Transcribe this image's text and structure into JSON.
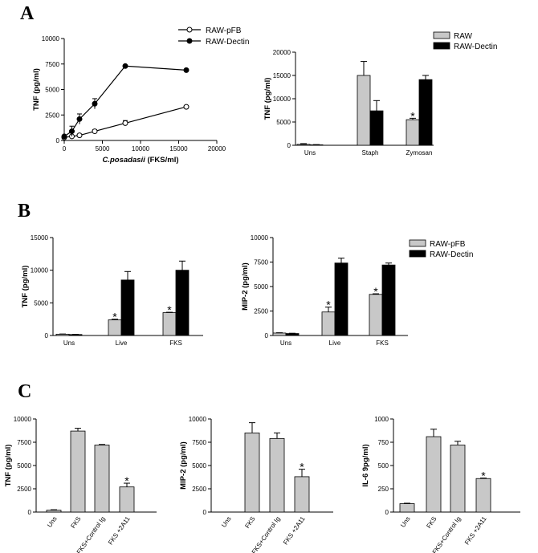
{
  "panels": {
    "a": "A",
    "b": "B",
    "c": "C"
  },
  "colors": {
    "series_open": "#c8c8c8",
    "series_filled": "#000000",
    "axis": "#000000"
  },
  "chart_data": [
    {
      "id": "A1",
      "type": "line",
      "xlabel_italic": "C.posadasii",
      "xlabel_rest": " (FKS/ml)",
      "ylabel": "TNF (pg/ml)",
      "xlim": [
        0,
        20000
      ],
      "ylim": [
        0,
        10000
      ],
      "xticks": [
        0,
        5000,
        10000,
        15000,
        20000
      ],
      "yticks": [
        0,
        2500,
        5000,
        7500,
        10000
      ],
      "legend_placement": "top-right",
      "series": [
        {
          "name": "RAW-pFB",
          "marker": "open",
          "x": [
            0,
            1000,
            2000,
            4000,
            8000,
            16000
          ],
          "y": [
            300,
            400,
            500,
            900,
            1700,
            3300
          ],
          "err": [
            100,
            100,
            100,
            150,
            250,
            100
          ]
        },
        {
          "name": "RAW-Dectin",
          "marker": "filled",
          "x": [
            0,
            1000,
            2000,
            4000,
            8000,
            16000
          ],
          "y": [
            400,
            900,
            2100,
            3600,
            7300,
            6900
          ],
          "err": [
            100,
            500,
            500,
            500,
            100,
            100
          ]
        }
      ]
    },
    {
      "id": "A2",
      "type": "bar",
      "ylabel": "TNF (pg/ml)",
      "ylim": [
        0,
        20000
      ],
      "yticks": [
        0,
        5000,
        10000,
        15000,
        20000
      ],
      "categories": [
        "Uns",
        "Staph",
        "Zymosan"
      ],
      "legend_placement": "top-right",
      "series": [
        {
          "name": "RAW",
          "fill": "#c8c8c8",
          "values": [
            200,
            15000,
            5500
          ],
          "err": [
            150,
            3000,
            300
          ]
        },
        {
          "name": "RAW-Dectin",
          "fill": "#000000",
          "values": [
            100,
            7400,
            14100
          ],
          "err": [
            50,
            2200,
            900
          ]
        }
      ],
      "stars": [
        [
          2,
          0
        ]
      ],
      "star_label": "*"
    },
    {
      "id": "B1",
      "type": "bar",
      "ylabel": "TNF (pg/ml)",
      "ylim": [
        0,
        15000
      ],
      "yticks": [
        0,
        5000,
        10000,
        15000
      ],
      "categories": [
        "Uns",
        "Live",
        "FKS"
      ],
      "series": [
        {
          "name": "RAW-pFB",
          "fill": "#c8c8c8",
          "values": [
            200,
            2400,
            3500
          ],
          "err": [
            30,
            100,
            60
          ]
        },
        {
          "name": "RAW-Dectin",
          "fill": "#000000",
          "values": [
            150,
            8500,
            10000
          ],
          "err": [
            30,
            1300,
            1400
          ]
        }
      ],
      "stars": [
        [
          1,
          0
        ],
        [
          2,
          0
        ]
      ],
      "star_label": "*"
    },
    {
      "id": "B2",
      "type": "bar",
      "ylabel": "MIP-2 (pg/ml)",
      "ylim": [
        0,
        10000
      ],
      "yticks": [
        0,
        2500,
        5000,
        7500,
        10000
      ],
      "categories": [
        "Uns",
        "Live",
        "FKS"
      ],
      "legend_placement": "right",
      "series": [
        {
          "name": "RAW-pFB",
          "fill": "#c8c8c8",
          "values": [
            250,
            2400,
            4200
          ],
          "err": [
            30,
            500,
            60
          ]
        },
        {
          "name": "RAW-Dectin",
          "fill": "#000000",
          "values": [
            200,
            7400,
            7200
          ],
          "err": [
            30,
            500,
            200
          ]
        }
      ],
      "stars": [
        [
          1,
          0
        ],
        [
          2,
          0
        ]
      ],
      "star_label": "*"
    },
    {
      "id": "C1",
      "type": "bar",
      "ylabel": "TNF (pg/ml)",
      "ylim": [
        0,
        10000
      ],
      "yticks": [
        0,
        2500,
        5000,
        7500,
        10000
      ],
      "categories": [
        "Uns",
        "FKS",
        "FKS+Control Ig",
        "FKS +2A11"
      ],
      "series": [
        {
          "name": "",
          "fill": "#c8c8c8",
          "values": [
            200,
            8700,
            7200,
            2700
          ],
          "err": [
            50,
            300,
            60,
            400
          ]
        }
      ],
      "stars": [
        [
          3,
          0
        ]
      ],
      "star_label": "*"
    },
    {
      "id": "C2",
      "type": "bar",
      "ylabel": "MIP-2 (pg/ml)",
      "ylim": [
        0,
        10000
      ],
      "yticks": [
        0,
        2500,
        5000,
        7500,
        10000
      ],
      "categories": [
        "Uns",
        "FKS",
        "FKS+Control Ig",
        "FKS +2A11"
      ],
      "series": [
        {
          "name": "",
          "fill": "#c8c8c8",
          "values": [
            0,
            8500,
            7900,
            3800
          ],
          "err": [
            0,
            1100,
            600,
            800
          ]
        }
      ],
      "stars": [
        [
          3,
          0
        ]
      ],
      "star_label": "*"
    },
    {
      "id": "C3",
      "type": "bar",
      "ylabel": "IL-6 9pg/ml)",
      "ylim": [
        0,
        1000
      ],
      "yticks": [
        0,
        250,
        500,
        750,
        1000
      ],
      "categories": [
        "Uns",
        "FKS",
        "FKS+Control Ig",
        "FKS +2A11"
      ],
      "series": [
        {
          "name": "",
          "fill": "#c8c8c8",
          "values": [
            90,
            810,
            720,
            360
          ],
          "err": [
            5,
            80,
            40,
            5
          ]
        }
      ],
      "stars": [
        [
          3,
          0
        ]
      ],
      "star_label": "*"
    }
  ]
}
